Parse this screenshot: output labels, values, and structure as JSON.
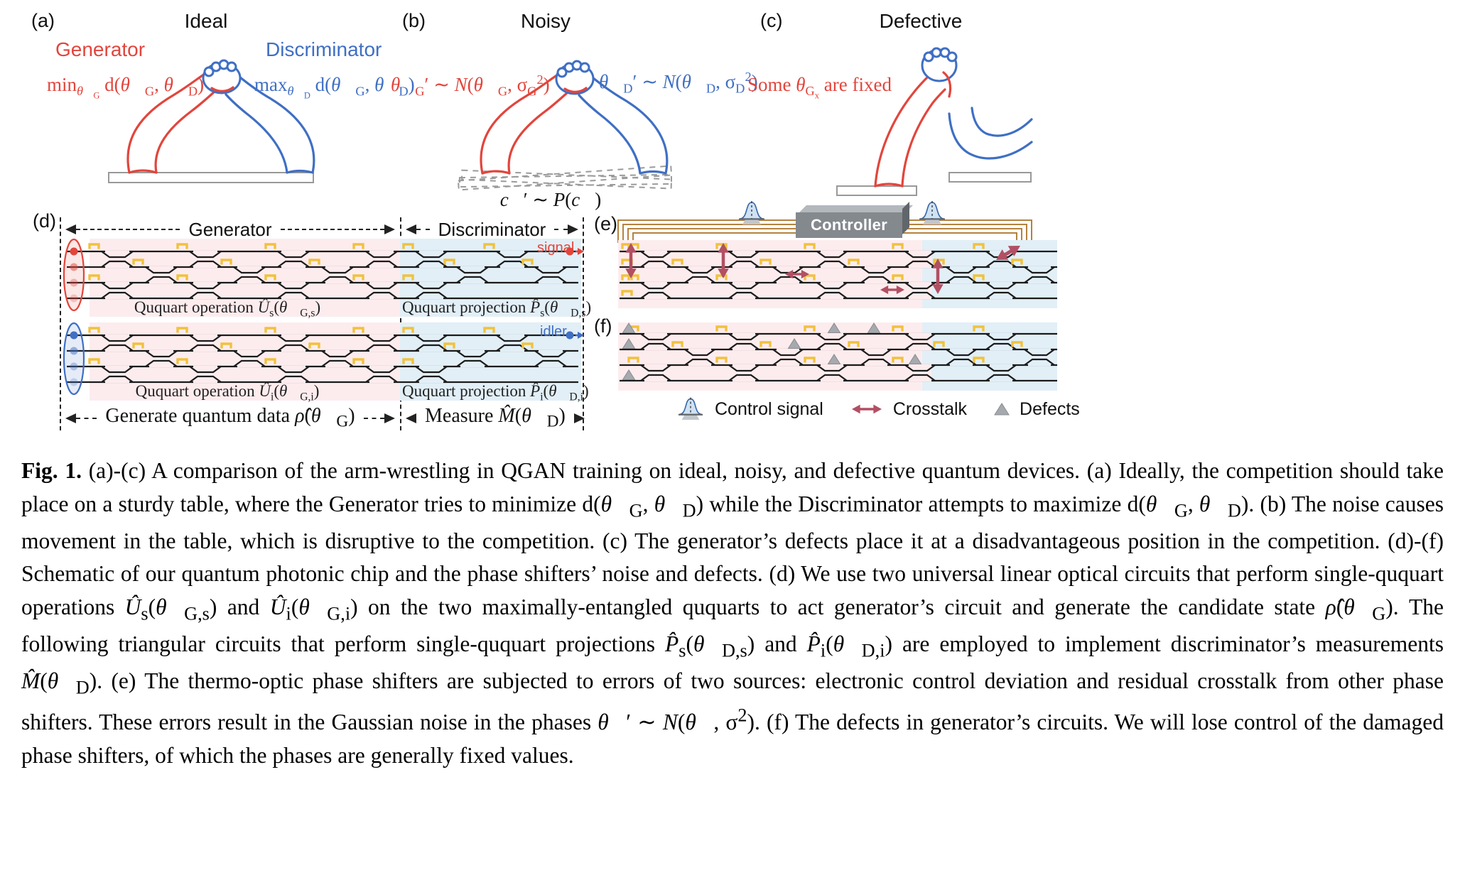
{
  "colors": {
    "red": "#e2453c",
    "blue": "#3f6fc4",
    "pink_bg": "#fdecee",
    "blue_bg": "#e2eff7",
    "yellow": "#f0c23c",
    "brown": "#b5823f",
    "crosstalk": "#b24f63",
    "defect_gray": "#a6a9ad",
    "controller": "#84898e"
  },
  "panel_a": {
    "letter": "(a)",
    "title": "Ideal",
    "generator": "Generator",
    "discriminator": "Discriminator",
    "min_html": "min<sub><i>θ⃗</i><sub>G</sub></sub> d(<i>θ⃗</i><sub>G</sub>, <i>θ⃗</i><sub>D</sub>)",
    "max_html": "max<sub><i>θ⃗</i><sub>D</sub></sub> d(<i>θ⃗</i><sub>G</sub>, <i>θ⃗</i><sub>D</sub>)"
  },
  "panel_b": {
    "letter": "(b)",
    "title": "Noisy",
    "gen_noise_html": "<i>θ⃗</i><sub>G</sub>′ ∼ <i>N</i>(<i>θ⃗</i><sub>G</sub>, σ<sub>G</sub><sup>2</sup>)",
    "disc_noise_html": "<i>θ⃗</i><sub>D</sub>′ ∼ <i>N</i>(<i>θ⃗</i><sub>D</sub>, σ<sub>D</sub><sup>2</sup>)",
    "table_noise_html": "<i>c⃗</i>′ ∼ <i>P</i>(<i>c⃗</i>)"
  },
  "panel_c": {
    "letter": "(c)",
    "title": "Defective",
    "fixed_html": "Some <i>θ</i><sub>G<sub>x</sub></sub> are fixed"
  },
  "panel_d": {
    "letter": "(d)",
    "generator_header": "Generator",
    "discriminator_header": "Discriminator",
    "signal": "signal",
    "idler": "idler",
    "op_signal_html": "Ququart operation <i>Û</i><sub>s</sub>(<i>θ⃗</i><sub>G,s</sub>)",
    "proj_signal_html": "Ququart projection <i>P̂</i><sub>s</sub>(<i>θ⃗</i><sub>D,s</sub>)",
    "op_idler_html": "Ququart operation <i>Û</i><sub>i</sub>(<i>θ⃗</i><sub>G,i</sub>)",
    "proj_idler_html": "Ququart projection <i>P̂</i><sub>i</sub>(<i>θ⃗</i><sub>D,i</sub>)",
    "generate_html": "Generate quantum data <i>ρ̂</i>(<i>θ⃗</i><sub>G</sub>)",
    "measure_html": "Measure <i>M̂</i>(<i>θ⃗</i><sub>D</sub>)"
  },
  "panel_e": {
    "letter": "(e)",
    "controller": "Controller"
  },
  "panel_f": {
    "letter": "(f)"
  },
  "legend": {
    "control_signal": "Control signal",
    "crosstalk": "Crosstalk",
    "defects": "Defects"
  },
  "caption": {
    "prefix": "Fig. 1.",
    "body_html": "(a)-(c) A comparison of the arm-wrestling in QGAN training on ideal, noisy, and defective quantum devices. (a) Ideally, the competition should take place on a sturdy table, where the Generator tries to minimize d(<i>θ⃗</i><sub>G</sub>, <i>θ⃗</i><sub>D</sub>) while the Discriminator attempts to maximize d(<i>θ⃗</i><sub>G</sub>, <i>θ⃗</i><sub>D</sub>). (b) The noise causes movement in the table, which is disruptive to the competition. (c) The generator’s defects place it at a disadvantageous position in the competition. (d)-(f) Schematic of our quantum photonic chip and the phase shifters’ noise and defects. (d) We use two universal linear optical circuits that perform single-ququart operations <i>Û</i><sub>s</sub>(<i>θ⃗</i><sub>G,s</sub>) and <i>Û</i><sub>i</sub>(<i>θ⃗</i><sub>G,i</sub>) on the two maximally-entangled ququarts to act generator’s circuit and generate the candidate state <i>ρ̂</i>(<i>θ⃗</i><sub>G</sub>). The following triangular circuits that perform single-ququart projections <i>P̂</i><sub>s</sub>(<i>θ⃗</i><sub>D,s</sub>) and <i>P̂</i><sub>i</sub>(<i>θ⃗</i><sub>D,i</sub>) are employed to implement discriminator’s measurements <i>M̂</i>(<i>θ⃗</i><sub>D</sub>). (e) The thermo-optic phase shifters are subjected to errors of two sources: electronic control deviation and residual crosstalk from other phase shifters. These errors result in the Gaussian noise in the phases <i>θ⃗</i>′ ∼ <i>N</i>(<i>θ⃗</i>, σ<sup>2</sup>). (f) The defects in generator’s circuits. We will lose control of the damaged phase shifters, of which the phases are generally fixed values."
  }
}
